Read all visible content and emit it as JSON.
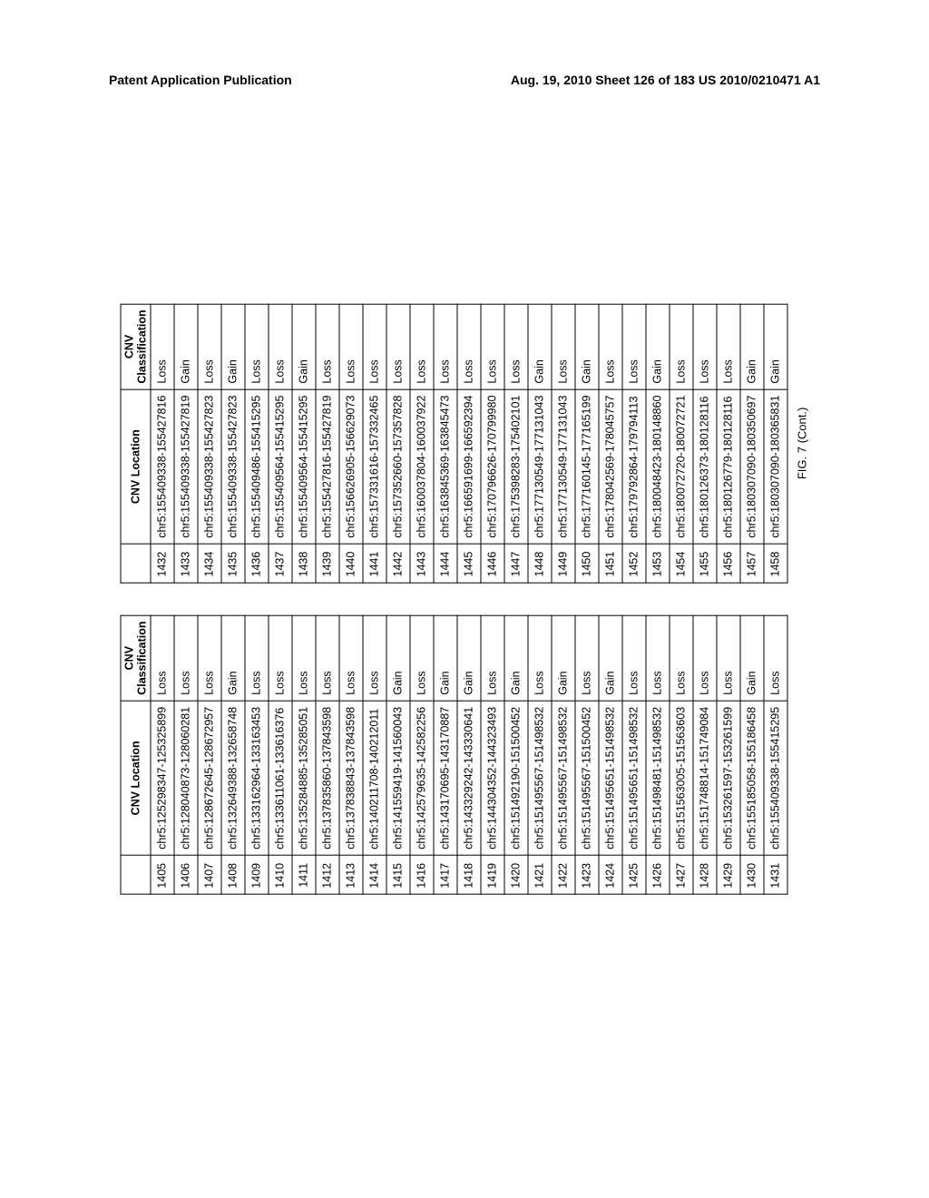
{
  "header": {
    "left": "Patent Application Publication",
    "right": "Aug. 19, 2010  Sheet 126 of 183  US 2010/0210471 A1"
  },
  "columns": {
    "idx": "",
    "loc": "CNV Location",
    "cls_line1": "CNV",
    "cls_line2": "Classification"
  },
  "caption": "FIG. 7 (Cont.)",
  "table_left": [
    {
      "idx": "1405",
      "loc": "chr5:125298347-125325899",
      "cls": "Loss"
    },
    {
      "idx": "1406",
      "loc": "chr5:128040873-128060281",
      "cls": "Loss"
    },
    {
      "idx": "1407",
      "loc": "chr5:128672645-128672957",
      "cls": "Loss"
    },
    {
      "idx": "1408",
      "loc": "chr5:132649388-132658748",
      "cls": "Gain"
    },
    {
      "idx": "1409",
      "loc": "chr5:133162964-133163453",
      "cls": "Loss"
    },
    {
      "idx": "1410",
      "loc": "chr5:133611061-133616376",
      "cls": "Loss"
    },
    {
      "idx": "1411",
      "loc": "chr5:135284885-135285051",
      "cls": "Loss"
    },
    {
      "idx": "1412",
      "loc": "chr5:137835860-137843598",
      "cls": "Loss"
    },
    {
      "idx": "1413",
      "loc": "chr5:137838843-137843598",
      "cls": "Loss"
    },
    {
      "idx": "1414",
      "loc": "chr5:140211708-140212011",
      "cls": "Loss"
    },
    {
      "idx": "1415",
      "loc": "chr5:141559419-141560043",
      "cls": "Gain"
    },
    {
      "idx": "1416",
      "loc": "chr5:142579635-142582256",
      "cls": "Loss"
    },
    {
      "idx": "1417",
      "loc": "chr5:143170695-143170887",
      "cls": "Gain"
    },
    {
      "idx": "1418",
      "loc": "chr5:143329242-143330641",
      "cls": "Gain"
    },
    {
      "idx": "1419",
      "loc": "chr5:144304352-144323493",
      "cls": "Loss"
    },
    {
      "idx": "1420",
      "loc": "chr5:151492190-151500452",
      "cls": "Gain"
    },
    {
      "idx": "1421",
      "loc": "chr5:151495567-151498532",
      "cls": "Loss"
    },
    {
      "idx": "1422",
      "loc": "chr5:151495567-151498532",
      "cls": "Gain"
    },
    {
      "idx": "1423",
      "loc": "chr5:151495567-151500452",
      "cls": "Loss"
    },
    {
      "idx": "1424",
      "loc": "chr5:151495651-151498532",
      "cls": "Gain"
    },
    {
      "idx": "1425",
      "loc": "chr5:151495651-151498532",
      "cls": "Loss"
    },
    {
      "idx": "1426",
      "loc": "chr5:151498481-151498532",
      "cls": "Loss"
    },
    {
      "idx": "1427",
      "loc": "chr5:151563005-151563603",
      "cls": "Loss"
    },
    {
      "idx": "1428",
      "loc": "chr5:151748814-151749084",
      "cls": "Loss"
    },
    {
      "idx": "1429",
      "loc": "chr5:153261597-153261599",
      "cls": "Loss"
    },
    {
      "idx": "1430",
      "loc": "chr5:155185058-155186458",
      "cls": "Gain"
    },
    {
      "idx": "1431",
      "loc": "chr5:155409338-155415295",
      "cls": "Loss"
    }
  ],
  "table_right": [
    {
      "idx": "1432",
      "loc": "chr5:155409338-155427816",
      "cls": "Loss"
    },
    {
      "idx": "1433",
      "loc": "chr5:155409338-155427819",
      "cls": "Gain"
    },
    {
      "idx": "1434",
      "loc": "chr5:155409338-155427823",
      "cls": "Loss"
    },
    {
      "idx": "1435",
      "loc": "chr5:155409338-155427823",
      "cls": "Gain"
    },
    {
      "idx": "1436",
      "loc": "chr5:155409486-155415295",
      "cls": "Loss"
    },
    {
      "idx": "1437",
      "loc": "chr5:155409564-155415295",
      "cls": "Loss"
    },
    {
      "idx": "1438",
      "loc": "chr5:155409564-155415295",
      "cls": "Gain"
    },
    {
      "idx": "1439",
      "loc": "chr5:155427816-155427819",
      "cls": "Loss"
    },
    {
      "idx": "1440",
      "loc": "chr5:156626905-156629073",
      "cls": "Loss"
    },
    {
      "idx": "1441",
      "loc": "chr5:157331616-157332465",
      "cls": "Loss"
    },
    {
      "idx": "1442",
      "loc": "chr5:157352660-157357828",
      "cls": "Loss"
    },
    {
      "idx": "1443",
      "loc": "chr5:160037804-160037922",
      "cls": "Loss"
    },
    {
      "idx": "1444",
      "loc": "chr5:163845369-163845473",
      "cls": "Loss"
    },
    {
      "idx": "1445",
      "loc": "chr5:166591699-166592394",
      "cls": "Loss"
    },
    {
      "idx": "1446",
      "loc": "chr5:170796626-170799980",
      "cls": "Loss"
    },
    {
      "idx": "1447",
      "loc": "chr5:175398283-175402101",
      "cls": "Loss"
    },
    {
      "idx": "1448",
      "loc": "chr5:177130549-177131043",
      "cls": "Gain"
    },
    {
      "idx": "1449",
      "loc": "chr5:177130549-177131043",
      "cls": "Loss"
    },
    {
      "idx": "1450",
      "loc": "chr5:177160145-177165199",
      "cls": "Gain"
    },
    {
      "idx": "1451",
      "loc": "chr5:178042569-178045757",
      "cls": "Loss"
    },
    {
      "idx": "1452",
      "loc": "chr5:179792864-179794113",
      "cls": "Loss"
    },
    {
      "idx": "1453",
      "loc": "chr5:180048423-180148860",
      "cls": "Gain"
    },
    {
      "idx": "1454",
      "loc": "chr5:180072720-180072721",
      "cls": "Loss"
    },
    {
      "idx": "1455",
      "loc": "chr5:180126373-180128116",
      "cls": "Loss"
    },
    {
      "idx": "1456",
      "loc": "chr5:180126779-180128116",
      "cls": "Loss"
    },
    {
      "idx": "1457",
      "loc": "chr5:180307090-180350697",
      "cls": "Gain"
    },
    {
      "idx": "1458",
      "loc": "chr5:180307090-180365831",
      "cls": "Gain"
    }
  ]
}
